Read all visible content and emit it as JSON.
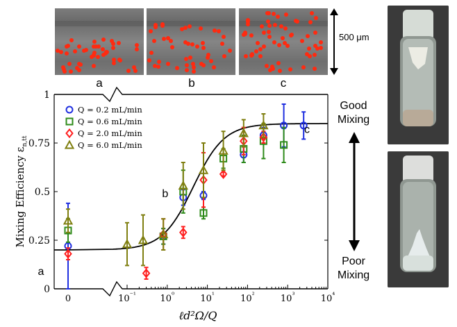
{
  "panels": [
    {
      "label": "a"
    },
    {
      "label": "b"
    },
    {
      "label": "c"
    }
  ],
  "scale_label": "500 μm",
  "side": {
    "good_label_line1": "Good",
    "good_label_line2": "Mixing",
    "poor_label_line1": "Poor",
    "poor_label_line2": "Mixing"
  },
  "colors": {
    "particle": "#ff2a10",
    "fit_curve": "#000000"
  },
  "chart_data": {
    "type": "scatter",
    "xscale": "log (with a separate Q→0 point at 0)",
    "xlabel": "ℓd²Ω/Q",
    "ylabel": "Mixing Efficiency ε",
    "ylabel_subscript": "n,tt",
    "xlim": [
      0.1,
      10000
    ],
    "ylim": [
      0,
      1
    ],
    "x_ticks": [
      "0",
      "10⁻¹",
      "10⁰",
      "10¹",
      "10²",
      "10³",
      "10⁴"
    ],
    "y_ticks": [
      "0",
      "0.25",
      "0.5",
      "0.75",
      "1"
    ],
    "legend_position": "top-left",
    "annotations": [
      {
        "text": "a",
        "x": 0.35,
        "y": 0.09
      },
      {
        "text": "b",
        "x": 1.3,
        "y": 0.49
      },
      {
        "text": "c",
        "x": 4500,
        "y": 0.82
      }
    ],
    "series": [
      {
        "name": "Q = 0.2 mL/min",
        "marker": "circle",
        "color": "#1f2fe0",
        "points": [
          {
            "x": 0,
            "y": 0.22,
            "err": 0.22
          },
          {
            "x": 0.8,
            "y": 0.27,
            "err": 0.04
          },
          {
            "x": 2.5,
            "y": 0.47,
            "err": 0.04
          },
          {
            "x": 8,
            "y": 0.48,
            "err": 0.02
          },
          {
            "x": 80,
            "y": 0.69,
            "err": 0.04
          },
          {
            "x": 250,
            "y": 0.79,
            "err": 0.04
          },
          {
            "x": 800,
            "y": 0.84,
            "err": 0.11
          },
          {
            "x": 2500,
            "y": 0.84,
            "err": 0.07
          }
        ]
      },
      {
        "name": "Q = 0.6 mL/min",
        "marker": "square",
        "color": "#2e8b1a",
        "points": [
          {
            "x": 0,
            "y": 0.3,
            "err": 0.06
          },
          {
            "x": 0.8,
            "y": 0.27,
            "err": 0.04
          },
          {
            "x": 2.5,
            "y": 0.5,
            "err": 0.11
          },
          {
            "x": 8,
            "y": 0.39,
            "err": 0.03
          },
          {
            "x": 25,
            "y": 0.67,
            "err": 0.05
          },
          {
            "x": 80,
            "y": 0.72,
            "err": 0.07
          },
          {
            "x": 250,
            "y": 0.76,
            "err": 0.09
          },
          {
            "x": 800,
            "y": 0.74,
            "err": 0.09
          }
        ]
      },
      {
        "name": "Q = 2.0 mL/min",
        "marker": "diamond",
        "color": "#ff1e1e",
        "points": [
          {
            "x": 0,
            "y": 0.18,
            "err": 0.03
          },
          {
            "x": 0.3,
            "y": 0.08,
            "err": 0.03
          },
          {
            "x": 0.8,
            "y": 0.28,
            "err": 0.08
          },
          {
            "x": 2.5,
            "y": 0.29,
            "err": 0.03
          },
          {
            "x": 8,
            "y": 0.56,
            "err": 0.14
          },
          {
            "x": 25,
            "y": 0.59,
            "err": 0.01
          },
          {
            "x": 80,
            "y": 0.76,
            "err": 0.07
          },
          {
            "x": 250,
            "y": 0.78,
            "err": 0.03
          }
        ]
      },
      {
        "name": "Q = 6.0 mL/min",
        "marker": "triangle",
        "color": "#7f7f10",
        "points": [
          {
            "x": 0,
            "y": 0.35,
            "err": 0.06
          },
          {
            "x": 0.1,
            "y": 0.23,
            "err": 0.11
          },
          {
            "x": 0.25,
            "y": 0.25,
            "err": 0.13
          },
          {
            "x": 0.8,
            "y": 0.28,
            "err": 0.08
          },
          {
            "x": 2.5,
            "y": 0.53,
            "err": 0.12
          },
          {
            "x": 8,
            "y": 0.61,
            "err": 0.14
          },
          {
            "x": 25,
            "y": 0.71,
            "err": 0.1
          },
          {
            "x": 80,
            "y": 0.8,
            "err": 0.07
          },
          {
            "x": 250,
            "y": 0.84,
            "err": 0.06
          }
        ]
      }
    ]
  }
}
